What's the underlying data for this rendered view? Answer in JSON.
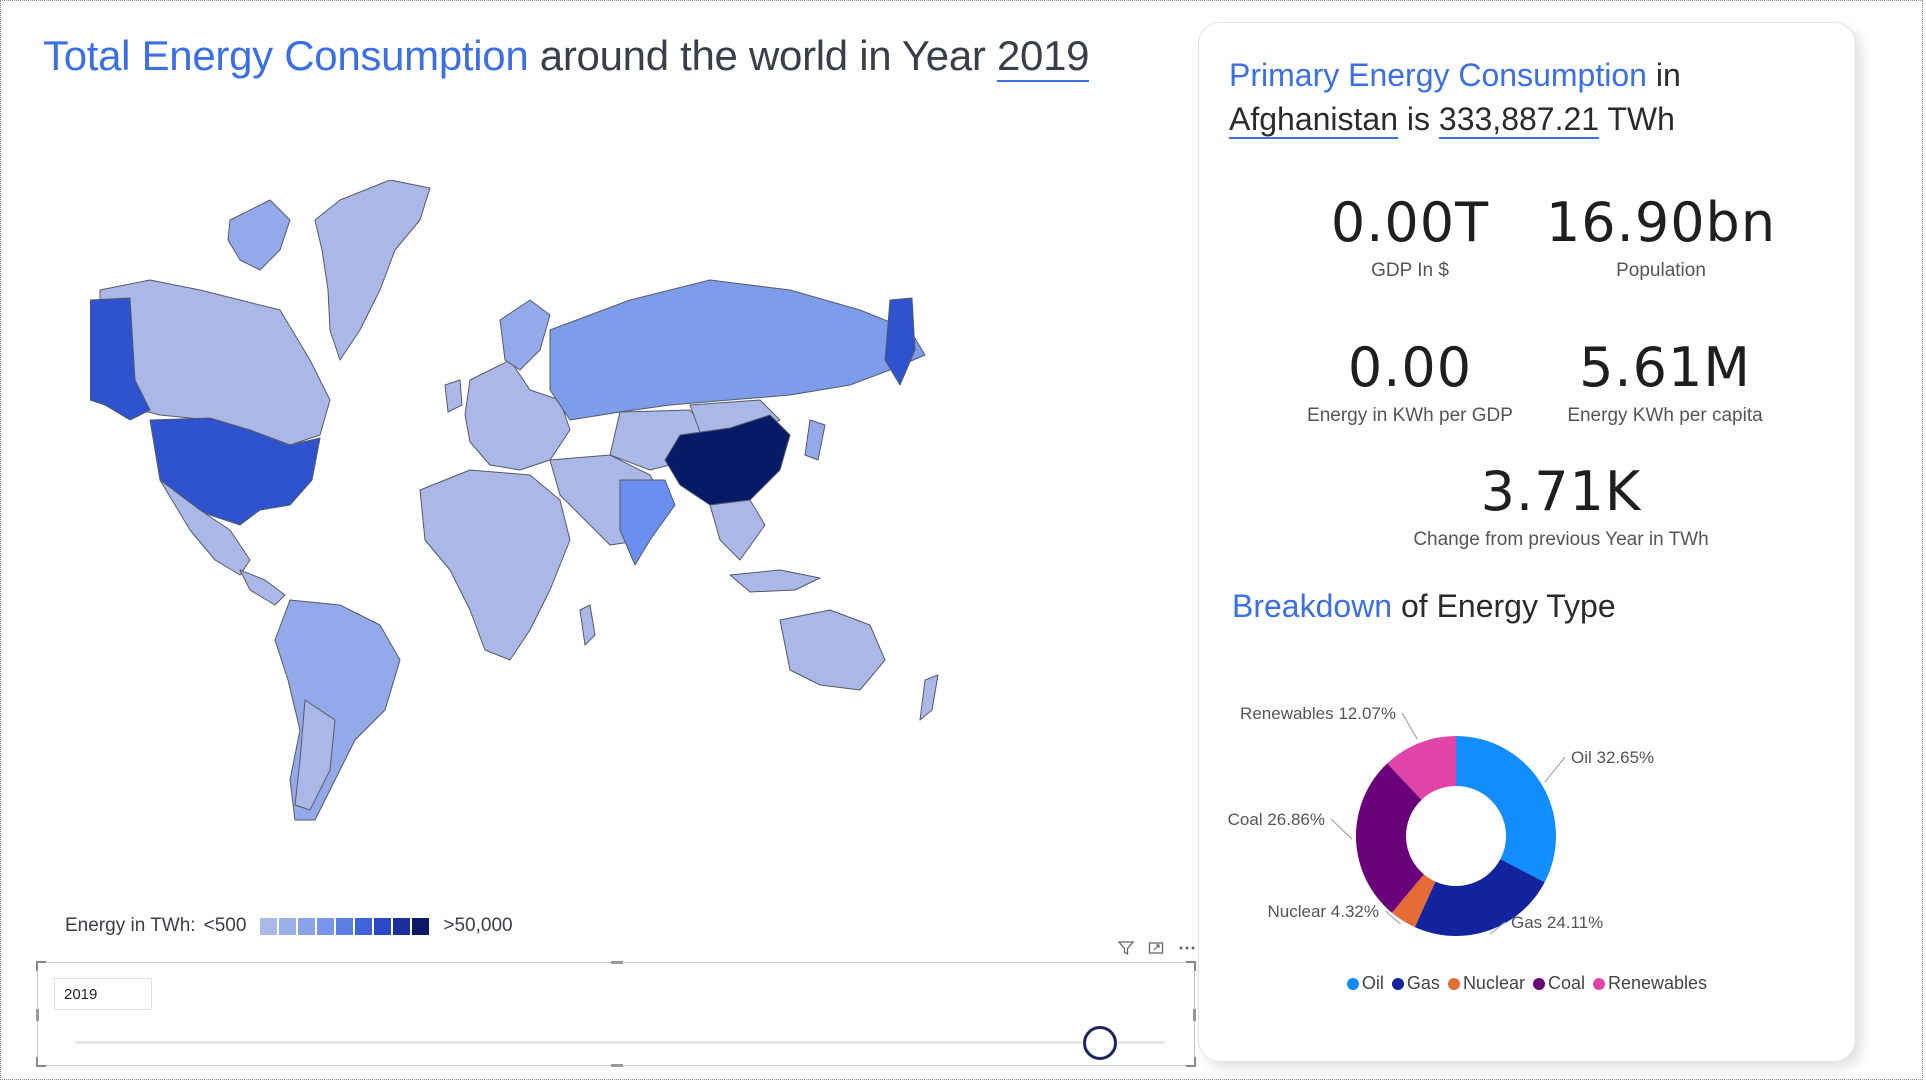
{
  "title": {
    "accent": "Total Energy Consumption",
    "rest": "around the world in Year",
    "year": "2019"
  },
  "legend": {
    "label": "Energy in TWh:",
    "min": "<500",
    "max": ">50,000",
    "colors": [
      "#a9b8e6",
      "#9aaee8",
      "#8aa2ea",
      "#7896ec",
      "#5c7fe6",
      "#3f63db",
      "#2b48c7",
      "#1b2f9e",
      "#0b1a66"
    ]
  },
  "map_colors": {
    "light": "#a9b8e6",
    "mid": "#93a9ea",
    "russia": "#7d9cea",
    "india": "#6a8ff0",
    "usa": "#2f52cf",
    "china": "#071a66"
  },
  "slicer": {
    "value": "2019",
    "position": 0.94
  },
  "card": {
    "title_accent": "Primary Energy Consumption",
    "title_in": "in",
    "country": "Afghanistan",
    "is": "is",
    "value": "333,887.21",
    "unit": "TWh",
    "kpis": [
      {
        "value": "0.00T",
        "label": "GDP In $"
      },
      {
        "value": "16.90bn",
        "label": "Population"
      },
      {
        "value": "0.00",
        "label": "Energy in KWh per GDP"
      },
      {
        "value": "5.61M",
        "label": "Energy KWh per capita"
      },
      {
        "value": "3.71K",
        "label": "Change from previous Year in TWh"
      }
    ],
    "breakdown_accent": "Breakdown",
    "breakdown_rest": "of Energy Type"
  },
  "chart_data": {
    "type": "pie",
    "series": [
      {
        "name": "Oil",
        "value": 32.65,
        "label": "Oil 32.65%",
        "color": "#118dff"
      },
      {
        "name": "Gas",
        "value": 24.11,
        "label": "Gas 24.11%",
        "color": "#12239e"
      },
      {
        "name": "Nuclear",
        "value": 4.32,
        "label": "Nuclear 4.32%",
        "color": "#e66c37"
      },
      {
        "name": "Coal",
        "value": 26.86,
        "label": "Coal 26.86%",
        "color": "#6b007b"
      },
      {
        "name": "Renewables",
        "value": 12.07,
        "label": "Renewables 12.07%",
        "color": "#e044a7"
      }
    ],
    "legend_position": "bottom"
  }
}
